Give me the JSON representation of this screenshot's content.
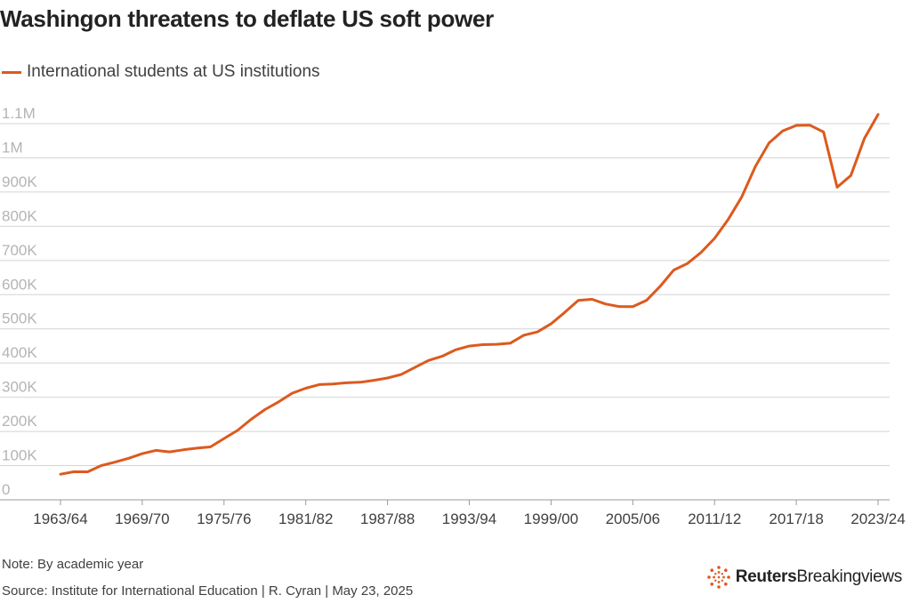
{
  "title": "Washingon threatens to deflate US soft power",
  "note": "Note: By academic year",
  "source": "Source: Institute for International Education | R. Cyran | May 23, 2025",
  "brand": {
    "strong": "Reuters",
    "light": "Breakingviews"
  },
  "chart_data": {
    "type": "line",
    "series": [
      {
        "name": "International students at US institutions",
        "color": "#dc5a1e",
        "x": [
          1963,
          1964,
          1965,
          1966,
          1967,
          1968,
          1969,
          1970,
          1971,
          1972,
          1973,
          1974,
          1975,
          1976,
          1977,
          1978,
          1979,
          1980,
          1981,
          1982,
          1983,
          1984,
          1985,
          1986,
          1987,
          1988,
          1989,
          1990,
          1991,
          1992,
          1993,
          1994,
          1995,
          1996,
          1997,
          1998,
          1999,
          2000,
          2001,
          2002,
          2003,
          2004,
          2005,
          2006,
          2007,
          2008,
          2009,
          2010,
          2011,
          2012,
          2013,
          2014,
          2015,
          2016,
          2017,
          2018,
          2019,
          2020,
          2021,
          2022,
          2023
        ],
        "values": [
          74800,
          82100,
          82000,
          100300,
          110300,
          121400,
          134900,
          144700,
          140100,
          146100,
          151100,
          154600,
          179300,
          203100,
          235500,
          263900,
          286300,
          311900,
          326300,
          336900,
          338900,
          342100,
          343800,
          349600,
          356200,
          366400,
          386900,
          407500,
          419600,
          438600,
          449700,
          453800,
          454800,
          457900,
          481300,
          491000,
          514700,
          547900,
          582996,
          586300,
          572500,
          565000,
          564800,
          582984,
          623800,
          671600,
          690900,
          723300,
          764500,
          819600,
          886100,
          974900,
          1043800,
          1078800,
          1094800,
          1095300,
          1075500,
          914100,
          948500,
          1057200,
          1126700
        ]
      }
    ],
    "xticks": [
      "1963/64",
      "1969/70",
      "1975/76",
      "1981/82",
      "1987/88",
      "1993/94",
      "1999/00",
      "2005/06",
      "2011/12",
      "2017/18",
      "2023/24"
    ],
    "yticks": [
      "0",
      "100K",
      "200K",
      "300K",
      "400K",
      "500K",
      "600K",
      "700K",
      "800K",
      "900K",
      "1M",
      "1.1M"
    ],
    "ylim": [
      0,
      1100000
    ],
    "xlim": [
      1963,
      2023
    ],
    "grid": true,
    "legend": "top-left"
  }
}
